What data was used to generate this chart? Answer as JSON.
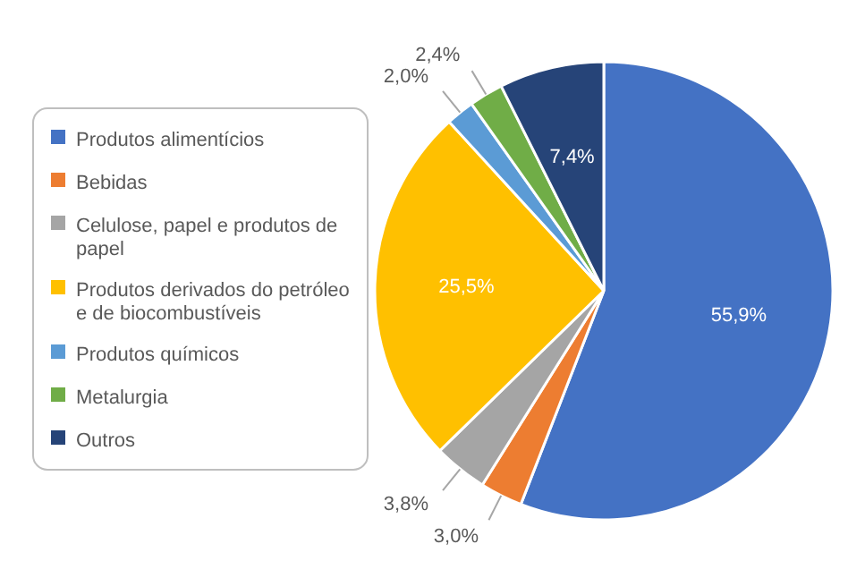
{
  "chart_data": {
    "type": "pie",
    "categories": [
      "Produtos alimentícios",
      "Bebidas",
      "Celulose, papel e produtos de papel",
      "Produtos derivados do petróleo e de biocombustíveis",
      "Produtos químicos",
      "Metalurgia",
      "Outros"
    ],
    "values": [
      55.9,
      3.0,
      3.8,
      25.5,
      2.0,
      2.4,
      7.4
    ],
    "value_labels": [
      "55,9%",
      "3,0%",
      "3,8%",
      "25,5%",
      "2,0%",
      "2,4%",
      "7,4%"
    ],
    "colors": [
      "#4472c4",
      "#ed7d31",
      "#a5a5a5",
      "#ffc000",
      "#5b9bd5",
      "#70ad47",
      "#264478"
    ],
    "legend": "left"
  }
}
